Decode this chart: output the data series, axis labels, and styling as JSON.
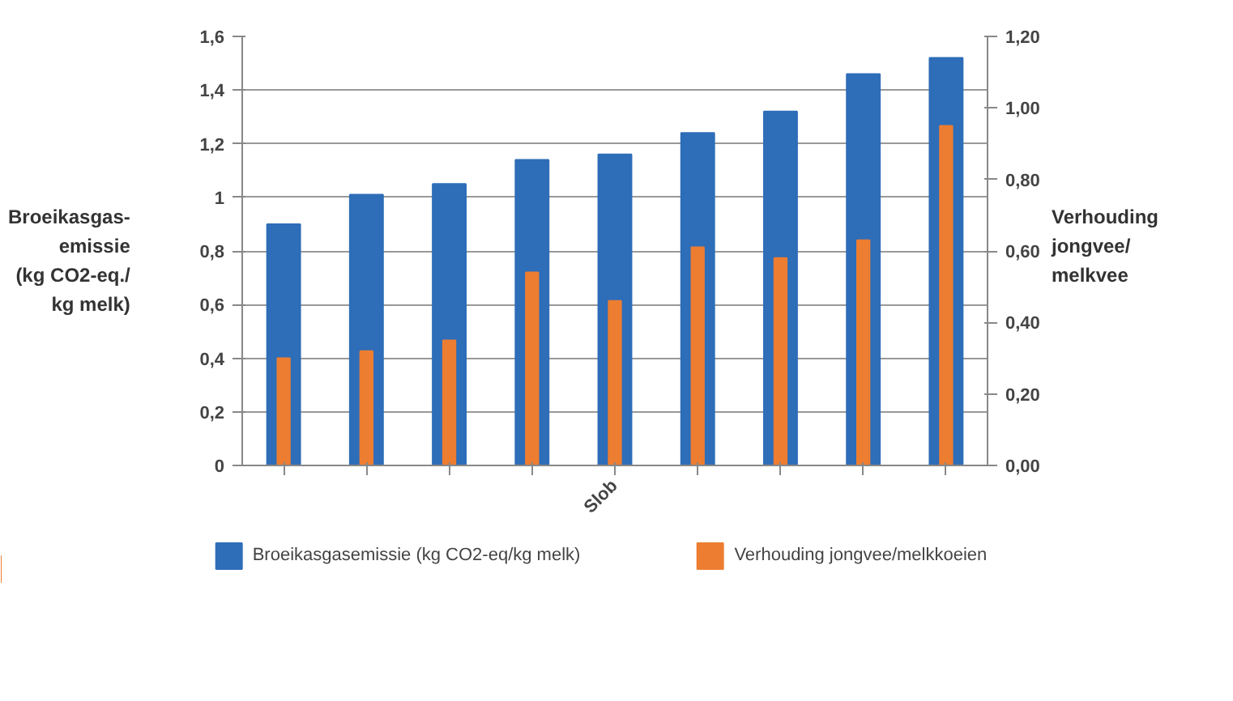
{
  "chart_data": {
    "type": "bar",
    "categories": [
      null,
      null,
      null,
      null,
      "Slob",
      null,
      null,
      null,
      null
    ],
    "ylabel": "Broeikasgas-\nemissie\n(kg CO2-eq./\nkg melk)",
    "y2label": "Verhouding\njongvee/\nmelkvee",
    "series": [
      {
        "name": "Broeikasgasemissie (kg CO2-eq/kg melk)",
        "color": "#2e6db8",
        "values": [
          0.9,
          1.01,
          1.05,
          1.14,
          1.16,
          1.24,
          1.32,
          1.46,
          1.52
        ]
      },
      {
        "name": "Verhouding jongvee/melkkoeien",
        "color": "#ed7d31",
        "axis": "y2",
        "values": [
          0.3,
          0.32,
          0.35,
          0.54,
          0.46,
          0.61,
          0.58,
          0.63,
          0.95
        ]
      }
    ],
    "ylim": [
      0,
      1.6
    ],
    "yticks": [
      0,
      {
        "value": 0.2,
        "label": "0,2"
      },
      {
        "value": 0.4,
        "label": "0,4"
      },
      {
        "value": 0.6,
        "label": "0,6"
      },
      {
        "value": 0.8,
        "label": "0,8"
      },
      1,
      {
        "value": 1.2,
        "label": "1,2"
      },
      {
        "value": 1.4,
        "label": "1,4"
      },
      {
        "value": 1.6,
        "label": "1,6"
      }
    ],
    "y2lim": [
      0,
      1.2
    ],
    "y2ticks": [
      {
        "value": 0,
        "label": "0,00"
      },
      {
        "value": 0.2,
        "label": "0,20"
      },
      {
        "value": 0.4,
        "label": "0,40"
      },
      {
        "value": 0.6,
        "label": "0,60"
      },
      {
        "value": 0.8,
        "label": "0,80"
      },
      {
        "value": 1.0,
        "label": "1,00"
      },
      {
        "value": 1.2,
        "label": "1,20"
      }
    ],
    "grid": "y",
    "legend": "bottom"
  }
}
